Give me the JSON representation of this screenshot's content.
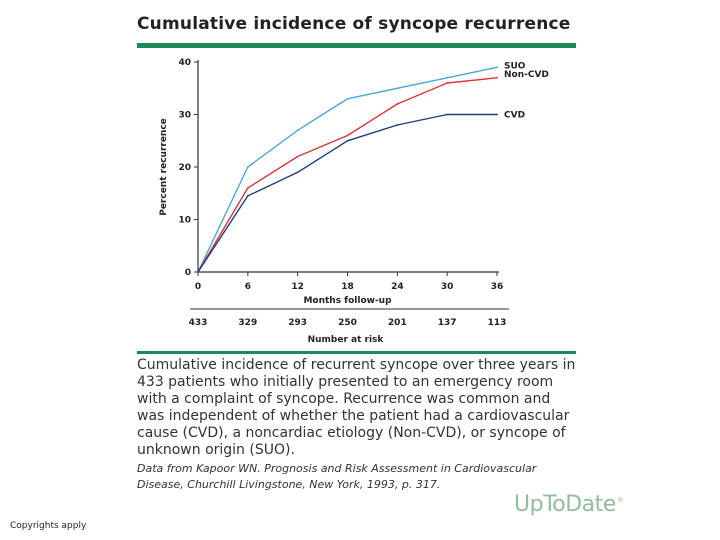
{
  "header": {
    "title": "Cumulative incidence of syncope recurrence"
  },
  "chart_data": {
    "type": "line",
    "title": "Cumulative incidence of syncope recurrence",
    "xlabel": "Months follow-up",
    "ylabel": "Percent recurrence",
    "xlim": [
      0,
      36
    ],
    "ylim": [
      0,
      40
    ],
    "x_ticks": [
      0,
      6,
      12,
      18,
      24,
      30,
      36
    ],
    "y_ticks": [
      0,
      10,
      20,
      30,
      40
    ],
    "grid": false,
    "series": [
      {
        "name": "SUO",
        "color": "#4aa8d8",
        "x": [
          0,
          6,
          12,
          17,
          18,
          24,
          30,
          36
        ],
        "values": [
          0,
          20,
          27,
          32,
          33,
          35,
          37,
          39
        ]
      },
      {
        "name": "Non-CVD",
        "color": "#d8363a",
        "x": [
          0,
          6,
          12,
          18,
          24,
          30,
          36
        ],
        "values": [
          0,
          16,
          22,
          26,
          32,
          36,
          37
        ]
      },
      {
        "name": "CVD",
        "color": "#1f3d7a",
        "x": [
          0,
          6,
          12,
          18,
          24,
          30,
          36
        ],
        "values": [
          0,
          14.5,
          19,
          25,
          28,
          30,
          30
        ]
      }
    ],
    "number_at_risk": {
      "label": "Number at risk",
      "x": [
        0,
        6,
        12,
        18,
        24,
        30,
        36
      ],
      "values": [
        "433",
        "329",
        "293",
        "250",
        "201",
        "137",
        "113"
      ]
    }
  },
  "caption": {
    "lines": [
      "Cumulative incidence of recurrent syncope over three years in",
      "433 patients who initially presented to an emergency room",
      "with a complaint of syncope. Recurrence was common and",
      "was independent of whether the patient had a cardiovascular",
      "cause (CVD), a noncardiac etiology (Non-CVD), or syncope of",
      "unknown origin (SUO)."
    ],
    "source_lines": [
      "Data from Kapoor WN. Prognosis and Risk Assessment in Cardiovascular",
      "Disease, Churchill Livingstone, New York, 1993, p. 317."
    ]
  },
  "branding": {
    "logo": "UpToDate",
    "mark": "®"
  },
  "footer": {
    "copyright": "Copyrights apply"
  }
}
